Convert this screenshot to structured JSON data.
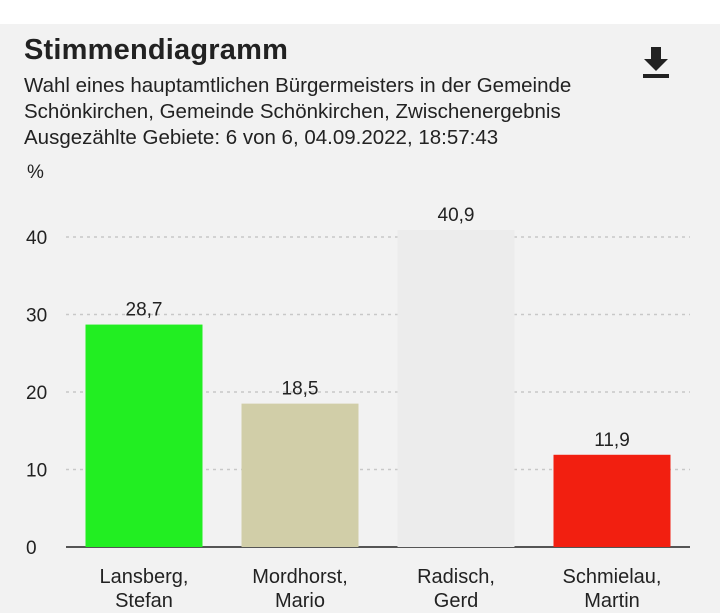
{
  "header": {
    "title": "Stimmendiagramm",
    "subtitle_lines": [
      "Wahl eines hauptamtlichen Bürgermeisters in der Gemeinde",
      "Schönkirchen, Gemeinde Schönkirchen, Zwischenergebnis",
      "Ausgezählte Gebiete: 6 von 6, 04.09.2022, 18:57:43"
    ],
    "download_icon": "download-icon"
  },
  "chart_data": {
    "type": "bar",
    "title": "Stimmendiagramm",
    "ylabel": "%",
    "ylim": [
      0,
      45
    ],
    "yticks": [
      0,
      10,
      20,
      30,
      40
    ],
    "grid": true,
    "categories": [
      [
        "Lansberg,",
        "Stefan"
      ],
      [
        "Mordhorst,",
        "Mario"
      ],
      [
        "Radisch,",
        "Gerd"
      ],
      [
        "Schmielau,",
        "Martin"
      ]
    ],
    "values": [
      28.7,
      18.5,
      40.9,
      11.9
    ],
    "value_labels": [
      "28,7",
      "18,5",
      "40,9",
      "11,9"
    ],
    "colors": [
      "#22ee22",
      "#d1cea8",
      "#ececec",
      "#f21f10"
    ]
  }
}
